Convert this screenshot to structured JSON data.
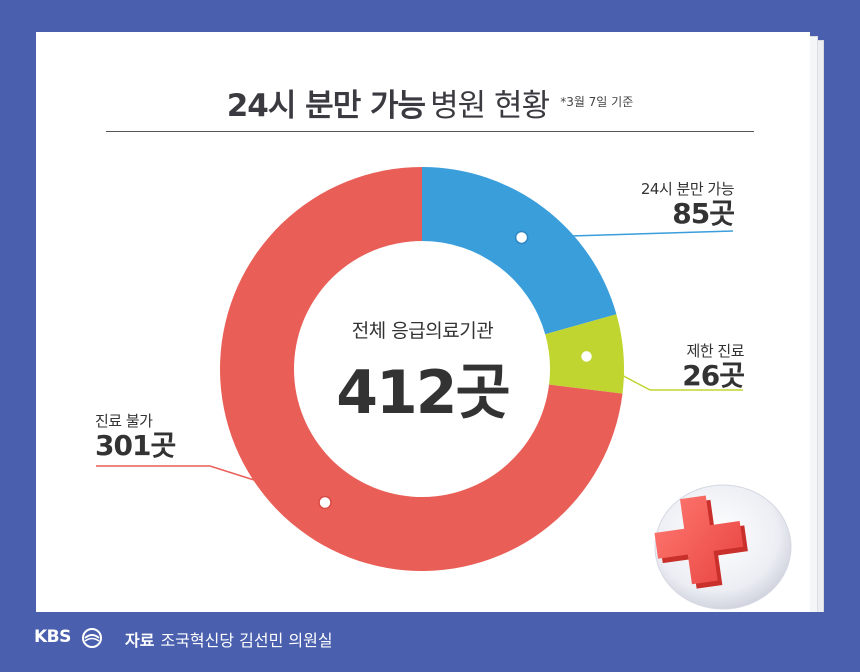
{
  "title": {
    "bold": "24시 분만 가능",
    "regular": "병원 현황",
    "note": "*3월 7일 기준"
  },
  "center": {
    "label": "전체 응급의료기관",
    "value": "412곳"
  },
  "chart_data": {
    "type": "pie",
    "title": "24시 분만 가능 병원 현황",
    "total": 412,
    "slices": [
      {
        "name": "24시 분만 가능",
        "value": 85,
        "display": "85곳",
        "color": "#3a9edb"
      },
      {
        "name": "제한 진료",
        "value": 26,
        "display": "26곳",
        "color": "#c1d531"
      },
      {
        "name": "진료 불가",
        "value": 301,
        "display": "301곳",
        "color": "#e95f57"
      }
    ]
  },
  "footer": {
    "brand": "KBS",
    "source_label": "자료",
    "source_text": "조국혁신당 김선민 의원실"
  },
  "icons": {
    "medical": "red-cross-icon",
    "logo": "kbs-logo-icon"
  }
}
